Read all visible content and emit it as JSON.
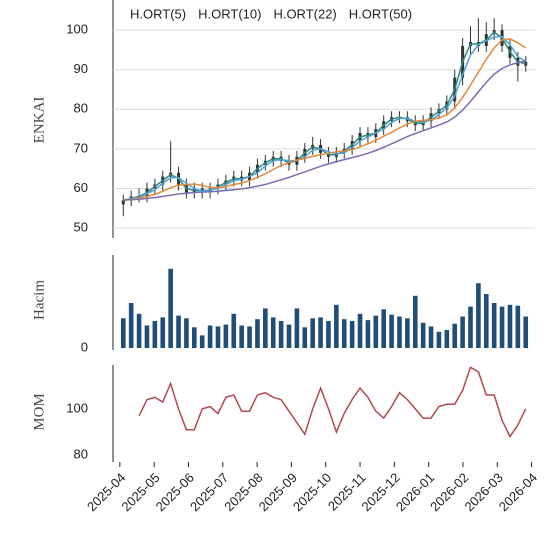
{
  "chart_data": [
    {
      "type": "candlestick",
      "ylabel": "ENKAI",
      "color": "#333333",
      "grid": true,
      "x": [
        0.1,
        0.33,
        0.56,
        0.79,
        1.02,
        1.25,
        1.48,
        1.71,
        1.94,
        2.17,
        2.4,
        2.63,
        2.86,
        3.09,
        3.32,
        3.55,
        3.78,
        4.01,
        4.24,
        4.47,
        4.7,
        4.93,
        5.16,
        5.39,
        5.62,
        5.85,
        6.08,
        6.31,
        6.54,
        6.77,
        7.0,
        7.23,
        7.46,
        7.69,
        7.92,
        8.15,
        8.38,
        8.61,
        8.84,
        9.07,
        9.3,
        9.53,
        9.76,
        9.99,
        10.22,
        10.45,
        10.68,
        10.91,
        11.14,
        11.37,
        11.6,
        11.83
      ],
      "open": [
        56,
        57,
        58,
        58,
        60,
        61,
        63,
        64,
        61,
        59,
        60,
        59,
        60,
        61,
        62,
        63,
        62,
        64,
        66,
        67,
        68,
        67,
        66,
        68,
        70,
        71,
        69,
        68,
        69,
        70,
        72,
        74,
        73,
        75,
        77,
        78,
        78,
        77,
        76,
        77,
        79,
        80,
        82,
        88,
        96,
        97,
        96,
        99,
        100,
        96,
        93,
        91
      ],
      "high": [
        58.5,
        59.5,
        60,
        61.5,
        62.5,
        64.5,
        72,
        65.5,
        62.5,
        61.5,
        61.5,
        61.5,
        62.5,
        63.5,
        64.5,
        64.5,
        65.5,
        67.5,
        68.5,
        69.5,
        69.5,
        68.5,
        69.5,
        71.5,
        73,
        72.5,
        70.5,
        70.5,
        71.5,
        73.5,
        75.5,
        75.5,
        76.5,
        78.5,
        79.5,
        79.5,
        79.5,
        78.5,
        78.5,
        80.5,
        81.5,
        83.5,
        90,
        98,
        101,
        103,
        102,
        103,
        101.5,
        97.5,
        94.5,
        93.5
      ],
      "low": [
        53,
        55.5,
        56.5,
        56.5,
        58.5,
        59.5,
        61.5,
        59.5,
        57.5,
        57.5,
        57.5,
        57.5,
        58.5,
        59.5,
        60.5,
        60.5,
        60.5,
        62.5,
        64.5,
        65.5,
        65.5,
        64.5,
        64.5,
        66.5,
        68.5,
        67.5,
        66.5,
        66.5,
        67.5,
        68.5,
        70.5,
        71.5,
        71.5,
        73.5,
        75.5,
        76.5,
        75.5,
        74.5,
        74.5,
        75.5,
        77.5,
        78.5,
        80.5,
        86,
        94,
        94.5,
        94.5,
        97.5,
        94.5,
        91.5,
        87,
        89.5
      ],
      "close": [
        57,
        58,
        58,
        60,
        61,
        63,
        64,
        61,
        59,
        60,
        59,
        60,
        61,
        62,
        63,
        62,
        64,
        66,
        67,
        68,
        67,
        66,
        68,
        70,
        71,
        69,
        68,
        69,
        70,
        72,
        74,
        73,
        75,
        77,
        78,
        78,
        77,
        76,
        77,
        79,
        80,
        82,
        88,
        96,
        97,
        96,
        99,
        100,
        96,
        93,
        91,
        92
      ],
      "series": [
        {
          "name": "H.ORT(5)",
          "color": "#2e8b7a",
          "values": [
            57,
            57.5,
            58,
            59,
            60.5,
            62,
            63.5,
            62.5,
            60,
            59.5,
            59.5,
            59.5,
            60.5,
            61.5,
            62.5,
            62.5,
            63,
            65,
            66.5,
            67.5,
            67.5,
            66.5,
            67,
            69,
            70.5,
            70,
            68.5,
            68.5,
            69.5,
            71,
            73,
            73.5,
            74,
            76,
            77.5,
            78,
            77.5,
            76.5,
            76.5,
            78,
            79.5,
            81,
            85,
            92,
            96.5,
            96.5,
            97.5,
            99.5,
            98,
            94.5,
            92,
            91.5
          ]
        },
        {
          "name": "H.ORT(10)",
          "color": "#4fa3d9",
          "values": [
            57,
            57.5,
            57.7,
            58.7,
            59.7,
            61.3,
            62.7,
            62.7,
            61.3,
            60,
            59.3,
            59.7,
            60,
            61,
            62,
            62.3,
            63,
            64,
            65.7,
            67,
            67.3,
            67,
            67,
            68,
            69.7,
            70,
            69.3,
            68.7,
            69,
            70.3,
            72,
            73,
            74,
            75,
            76.7,
            77.7,
            77.7,
            77,
            76.7,
            77.3,
            78.7,
            80.3,
            83.3,
            88.7,
            93.7,
            96.3,
            97.3,
            98.3,
            98.3,
            96.3,
            93.3,
            92
          ]
        },
        {
          "name": "H.ORT(22)",
          "color": "#e08a3c",
          "values": [
            57,
            57.3,
            57.6,
            58,
            58.5,
            59.3,
            60.2,
            60.8,
            61,
            61.1,
            60.8,
            60.3,
            60.2,
            60.5,
            61,
            61.4,
            62,
            62.8,
            63.7,
            64.8,
            65.8,
            66.6,
            67.2,
            67.6,
            68.1,
            68.5,
            68.9,
            69.3,
            69.5,
            69.8,
            70.5,
            71.3,
            72.2,
            73.2,
            74.2,
            75.3,
            76.3,
            77,
            77.2,
            77.4,
            77.8,
            78.6,
            80.3,
            83,
            86.1,
            89.4,
            92.6,
            95.5,
            97.5,
            97.8,
            96.8,
            95.5
          ]
        },
        {
          "name": "H.ORT(50)",
          "color": "#7570b3",
          "values": [
            57,
            57.2,
            57.3,
            57.5,
            57.7,
            58,
            58.3,
            58.6,
            58.8,
            59,
            59.1,
            59.2,
            59.3,
            59.5,
            59.7,
            59.9,
            60.2,
            60.6,
            61,
            61.6,
            62.2,
            62.8,
            63.5,
            64.2,
            64.9,
            65.6,
            66.2,
            66.8,
            67.3,
            67.8,
            68.3,
            68.9,
            69.6,
            70.4,
            71.3,
            72.2,
            73.1,
            73.9,
            74.6,
            75.3,
            76,
            76.8,
            78,
            79.8,
            82,
            84.4,
            86.8,
            88.9,
            90.3,
            91.2,
            91.8,
            92.2
          ]
        }
      ],
      "xlim": [
        -0.2,
        12.1
      ],
      "ylim": [
        47.5,
        107.6
      ],
      "yticks": [
        50,
        60,
        70,
        80,
        90,
        100
      ]
    },
    {
      "type": "bar",
      "ylabel": "Hacim",
      "color": "#1f4e79",
      "x": [
        0.1,
        0.33,
        0.56,
        0.79,
        1.02,
        1.25,
        1.48,
        1.71,
        1.94,
        2.17,
        2.4,
        2.63,
        2.86,
        3.09,
        3.32,
        3.55,
        3.78,
        4.01,
        4.24,
        4.47,
        4.7,
        4.93,
        5.16,
        5.39,
        5.62,
        5.85,
        6.08,
        6.31,
        6.54,
        6.77,
        7.0,
        7.23,
        7.46,
        7.69,
        7.92,
        8.15,
        8.38,
        8.61,
        8.84,
        9.07,
        9.3,
        9.53,
        9.76,
        9.99,
        10.22,
        10.45,
        10.68,
        10.91,
        11.14,
        11.37,
        11.6,
        11.83
      ],
      "values": [
        33,
        50,
        38,
        25,
        30,
        34,
        88,
        36,
        33,
        23,
        14,
        25,
        24,
        26,
        38,
        25,
        24,
        32,
        44,
        34,
        30,
        26,
        44,
        23,
        33,
        34,
        30,
        48,
        32,
        30,
        38,
        31,
        36,
        43,
        37,
        35,
        33,
        58,
        28,
        24,
        18,
        20,
        27,
        35,
        46,
        72,
        60,
        50,
        46,
        48,
        47,
        35
      ],
      "xlim": [
        -0.2,
        12.1
      ],
      "ylim": [
        0,
        100
      ],
      "yticks": [
        0
      ]
    },
    {
      "type": "line",
      "ylabel": "MOM",
      "color": "#b04a50",
      "x": [
        0.1,
        0.33,
        0.56,
        0.79,
        1.02,
        1.25,
        1.48,
        1.71,
        1.94,
        2.17,
        2.4,
        2.63,
        2.86,
        3.09,
        3.32,
        3.55,
        3.78,
        4.01,
        4.24,
        4.47,
        4.7,
        4.93,
        5.16,
        5.39,
        5.62,
        5.85,
        6.08,
        6.31,
        6.54,
        6.77,
        7.0,
        7.23,
        7.46,
        7.69,
        7.92,
        8.15,
        8.38,
        8.61,
        8.84,
        9.07,
        9.3,
        9.53,
        9.76,
        9.99,
        10.22,
        10.45,
        10.68,
        10.91,
        11.14,
        11.37,
        11.6,
        11.83
      ],
      "values": [
        null,
        null,
        97,
        104,
        105,
        103,
        111,
        100,
        91,
        91,
        100,
        101,
        98,
        105,
        106,
        99,
        99,
        106,
        107,
        105,
        104,
        99,
        94,
        89,
        100,
        109,
        100,
        90,
        98,
        104,
        109,
        105,
        99,
        96,
        101,
        107,
        104,
        100,
        96,
        96,
        101,
        102,
        102,
        108,
        118,
        116,
        106,
        106,
        95,
        88,
        93,
        100
      ],
      "xlim": [
        -0.2,
        12.1
      ],
      "ylim": [
        77,
        119
      ],
      "yticks": [
        80,
        100
      ],
      "xticks": [
        {
          "value": 0,
          "label": "2025-04"
        },
        {
          "value": 1,
          "label": "2025-05"
        },
        {
          "value": 2,
          "label": "2025-06"
        },
        {
          "value": 3,
          "label": "2025-07"
        },
        {
          "value": 4,
          "label": "2025-08"
        },
        {
          "value": 5,
          "label": "2025-09"
        },
        {
          "value": 6,
          "label": "2025-10"
        },
        {
          "value": 7,
          "label": "2025-11"
        },
        {
          "value": 8,
          "label": "2025-12"
        },
        {
          "value": 9,
          "label": "2026-01"
        },
        {
          "value": 10,
          "label": "2026-02"
        },
        {
          "value": 11,
          "label": "2026-03"
        },
        {
          "value": 12,
          "label": "2026-04"
        }
      ]
    }
  ]
}
